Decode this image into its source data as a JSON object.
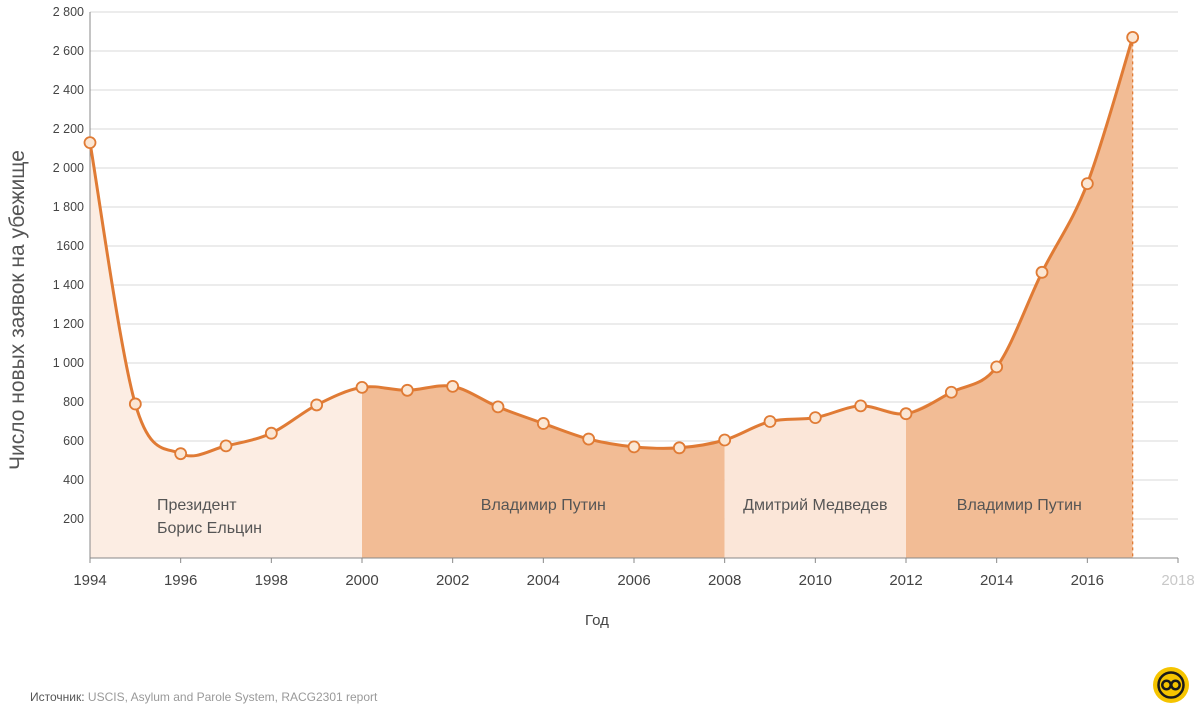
{
  "chart_data": {
    "type": "area",
    "xlabel": "Год",
    "ylabel": "Число новых заявок на убежище",
    "xlim": [
      1994,
      2018
    ],
    "ylim": [
      0,
      2800
    ],
    "x_ticks": [
      "1994",
      "1996",
      "1998",
      "2000",
      "2002",
      "2004",
      "2006",
      "2008",
      "2010",
      "2012",
      "2014",
      "2016",
      "2018"
    ],
    "y_ticks": [
      "200",
      "400",
      "600",
      "800",
      "1 000",
      "1 200",
      "1 400",
      "1600",
      "1 800",
      "2 000",
      "2 200",
      "2 400",
      "2 600",
      "2 800"
    ],
    "x": [
      1994,
      1995,
      1996,
      1997,
      1998,
      1999,
      2000,
      2001,
      2002,
      2003,
      2004,
      2005,
      2006,
      2007,
      2008,
      2009,
      2010,
      2011,
      2012,
      2013,
      2014,
      2015,
      2016,
      2017
    ],
    "y": [
      2130,
      790,
      535,
      575,
      640,
      785,
      875,
      860,
      880,
      775,
      690,
      610,
      570,
      565,
      605,
      700,
      720,
      780,
      740,
      850,
      980,
      1465,
      1920,
      2670
    ],
    "periods": [
      {
        "label": [
          "Президент",
          "Борис Ельцин"
        ],
        "start": 1994,
        "end": 2000,
        "color": "#fcede3"
      },
      {
        "label": [
          "Владимир Путин"
        ],
        "start": 2000,
        "end": 2008,
        "color": "#f2bc95"
      },
      {
        "label": [
          "Дмитрий Медведев"
        ],
        "start": 2008,
        "end": 2012,
        "color": "#fbe6d8"
      },
      {
        "label": [
          "Владимир Путин"
        ],
        "start": 2012,
        "end": 2017,
        "color": "#f2bc95"
      }
    ],
    "line_color": "#e07b35",
    "marker_fill": "#fbe6d3",
    "grid": true
  },
  "source": {
    "label": "Источник:",
    "text": "USCIS, Asylum and Parole System, RACG2301 report"
  },
  "colors": {
    "logo": "#f5c400"
  }
}
